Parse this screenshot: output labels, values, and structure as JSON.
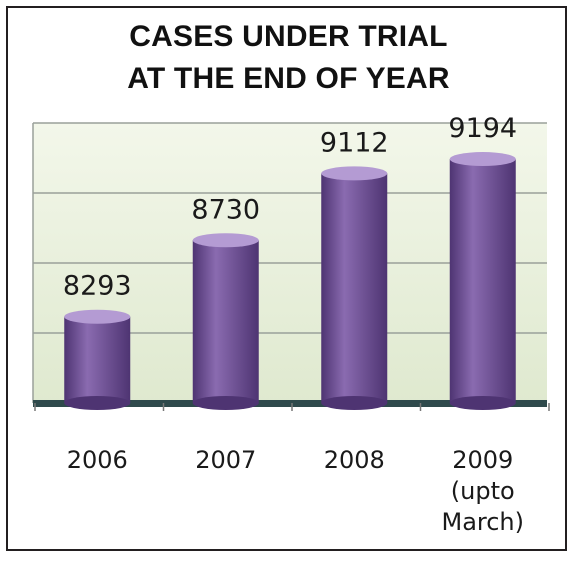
{
  "chart_data": {
    "type": "bar",
    "title": "CASES UNDER TRIAL",
    "subtitle": "AT THE END OF YEAR",
    "categories": [
      [
        "2006"
      ],
      [
        "2007"
      ],
      [
        "2008"
      ],
      [
        "2009",
        "(upto",
        "March)"
      ]
    ],
    "values": [
      8293,
      8730,
      9112,
      9194
    ],
    "data_labels": [
      "8293",
      "8730",
      "9112",
      "9194"
    ],
    "ylim": [
      7800,
      9400
    ],
    "gridlines": [
      7800,
      8200,
      8600,
      9000,
      9400
    ],
    "xlabel": "",
    "ylabel": "",
    "grid": true,
    "legend": "none",
    "colors": {
      "bar": "#8a6bb0",
      "bar_dark": "#4e3472",
      "bar_light": "#b49bd3",
      "plot_bg_top": "#f3f7ea",
      "plot_bg_bottom": "#dfe9cf",
      "grid": "#9aa09a",
      "floor": "#2f4a4c"
    }
  }
}
